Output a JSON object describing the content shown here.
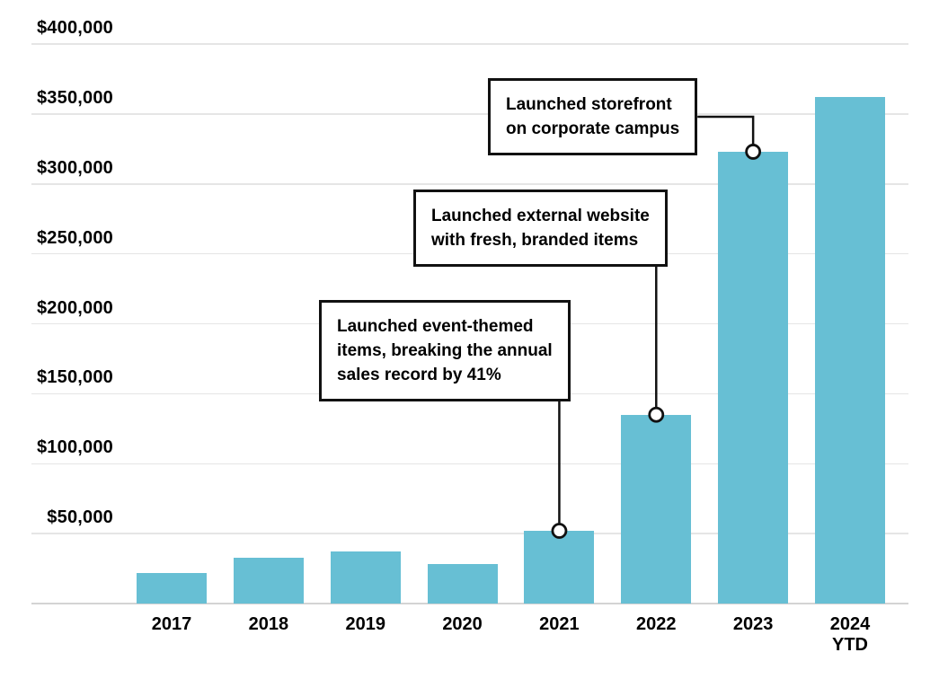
{
  "chart_data": {
    "type": "bar",
    "title": "",
    "xlabel": "",
    "ylabel": "",
    "ylim": [
      0,
      400000
    ],
    "grid": "horizontal",
    "legend": "none",
    "bar_color": "#67BFD4",
    "categories": [
      {
        "label": "2017",
        "sublabel": ""
      },
      {
        "label": "2018",
        "sublabel": ""
      },
      {
        "label": "2019",
        "sublabel": ""
      },
      {
        "label": "2020",
        "sublabel": ""
      },
      {
        "label": "2021",
        "sublabel": ""
      },
      {
        "label": "2022",
        "sublabel": ""
      },
      {
        "label": "2023",
        "sublabel": ""
      },
      {
        "label": "2024",
        "sublabel": "YTD"
      }
    ],
    "values": [
      22000,
      33000,
      37000,
      28000,
      52000,
      135000,
      323000,
      362000
    ],
    "y_ticks": [
      {
        "value": 400000,
        "label": "$400,000"
      },
      {
        "value": 350000,
        "label": "$350,000"
      },
      {
        "value": 300000,
        "label": "$300,000"
      },
      {
        "value": 250000,
        "label": "$250,000"
      },
      {
        "value": 200000,
        "label": "$200,000"
      },
      {
        "value": 150000,
        "label": "$150,000"
      },
      {
        "value": 100000,
        "label": "$100,000"
      },
      {
        "value": 50000,
        "label": "$50,000"
      }
    ],
    "annotations": [
      {
        "lines": [
          "Launched storefront",
          "on corporate campus",
          ""
        ],
        "target_year": "2023",
        "target_value": 323000
      },
      {
        "lines": [
          "Launched external website",
          "with fresh, branded items",
          ""
        ],
        "target_year": "2022",
        "target_value": 135000
      },
      {
        "lines": [
          "Launched event-themed",
          "items, breaking the annual",
          "sales record by 41%"
        ],
        "target_year": "2021",
        "target_value": 52000
      }
    ]
  },
  "colors": {
    "bar": "#67BFD4",
    "gridline": "#E5E5E5",
    "baseline": "#D4D4D4",
    "text": "#000000",
    "annotation_border": "#111111",
    "background": "#FFFFFF"
  }
}
